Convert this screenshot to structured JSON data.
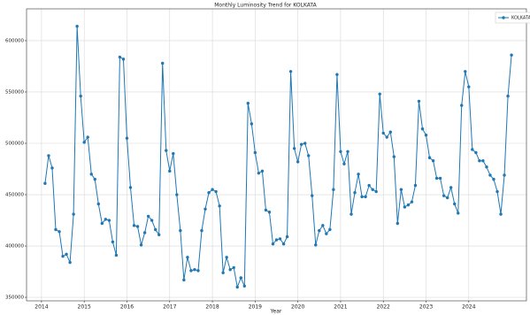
{
  "chart_data": {
    "type": "line",
    "title": "Monthly Luminosity Trend for KOLKATA",
    "x_label": "Year",
    "x": [
      2014.083,
      2014.167,
      2014.25,
      2014.333,
      2014.417,
      2014.5,
      2014.583,
      2014.667,
      2014.75,
      2014.833,
      2014.917,
      2015.0,
      2015.083,
      2015.167,
      2015.25,
      2015.333,
      2015.417,
      2015.5,
      2015.583,
      2015.667,
      2015.75,
      2015.833,
      2015.917,
      2016.0,
      2016.083,
      2016.167,
      2016.25,
      2016.333,
      2016.417,
      2016.5,
      2016.583,
      2016.667,
      2016.75,
      2016.833,
      2016.917,
      2017.0,
      2017.083,
      2017.167,
      2017.25,
      2017.333,
      2017.417,
      2017.5,
      2017.583,
      2017.667,
      2017.75,
      2017.833,
      2017.917,
      2018.0,
      2018.083,
      2018.167,
      2018.25,
      2018.333,
      2018.417,
      2018.5,
      2018.583,
      2018.667,
      2018.75,
      2018.833,
      2018.917,
      2019.0,
      2019.083,
      2019.167,
      2019.25,
      2019.333,
      2019.417,
      2019.5,
      2019.583,
      2019.667,
      2019.75,
      2019.833,
      2019.917,
      2020.0,
      2020.083,
      2020.167,
      2020.25,
      2020.333,
      2020.417,
      2020.5,
      2020.583,
      2020.667,
      2020.75,
      2020.833,
      2020.917,
      2021.0,
      2021.083,
      2021.167,
      2021.25,
      2021.333,
      2021.417,
      2021.5,
      2021.583,
      2021.667,
      2021.75,
      2021.833,
      2021.917,
      2022.0,
      2022.083,
      2022.167,
      2022.25,
      2022.333,
      2022.417,
      2022.5,
      2022.583,
      2022.667,
      2022.75,
      2022.833,
      2022.917,
      2023.0,
      2023.083,
      2023.167,
      2023.25,
      2023.333,
      2023.417,
      2023.5,
      2023.583,
      2023.667,
      2023.75,
      2023.833,
      2023.917,
      2024.0,
      2024.083,
      2024.167,
      2024.25,
      2024.333,
      2024.417,
      2024.5,
      2024.583,
      2024.667,
      2024.75,
      2024.833,
      2024.917,
      2025.0
    ],
    "series": [
      {
        "name": "KOLKATA",
        "color": "#1f77b4",
        "values": [
          461000,
          488000,
          476000,
          416000,
          414000,
          390000,
          392000,
          384000,
          431000,
          614000,
          546000,
          501000,
          506000,
          470000,
          465000,
          441000,
          422000,
          426000,
          425000,
          404000,
          391000,
          584000,
          582000,
          505000,
          457000,
          420000,
          419000,
          401000,
          413000,
          429000,
          425000,
          416000,
          411000,
          578000,
          493000,
          473000,
          490000,
          450000,
          415000,
          367000,
          389000,
          376000,
          377000,
          376000,
          415000,
          436000,
          452000,
          455000,
          453000,
          439000,
          374000,
          389000,
          377000,
          379000,
          360000,
          369000,
          361000,
          539000,
          519000,
          491000,
          471000,
          473000,
          435000,
          433000,
          402000,
          406000,
          407000,
          402000,
          409000,
          570000,
          495000,
          482000,
          499000,
          500000,
          488000,
          449000,
          401000,
          415000,
          420000,
          412000,
          416000,
          455000,
          567000,
          492000,
          480000,
          492000,
          431000,
          452000,
          470000,
          448000,
          448000,
          459000,
          455000,
          453000,
          548000,
          510000,
          506000,
          511000,
          487000,
          422000,
          455000,
          438000,
          440000,
          443000,
          459000,
          541000,
          514000,
          508000,
          486000,
          483000,
          466000,
          466000,
          449000,
          447000,
          457000,
          441000,
          432000,
          537000,
          570000,
          555000,
          494000,
          491000,
          483000,
          483000,
          477000,
          469000,
          465000,
          453000,
          431000,
          469000,
          546000,
          586000
        ]
      }
    ],
    "xlim": [
      2013.65,
      2025.35
    ],
    "xticks": [
      2014,
      2015,
      2016,
      2017,
      2018,
      2019,
      2020,
      2021,
      2022,
      2023,
      2024
    ],
    "ylim": [
      346600,
      631000
    ],
    "yticks": [
      350000,
      400000,
      450000,
      500000,
      550000,
      600000
    ],
    "grid": true,
    "legend": "upper right"
  }
}
